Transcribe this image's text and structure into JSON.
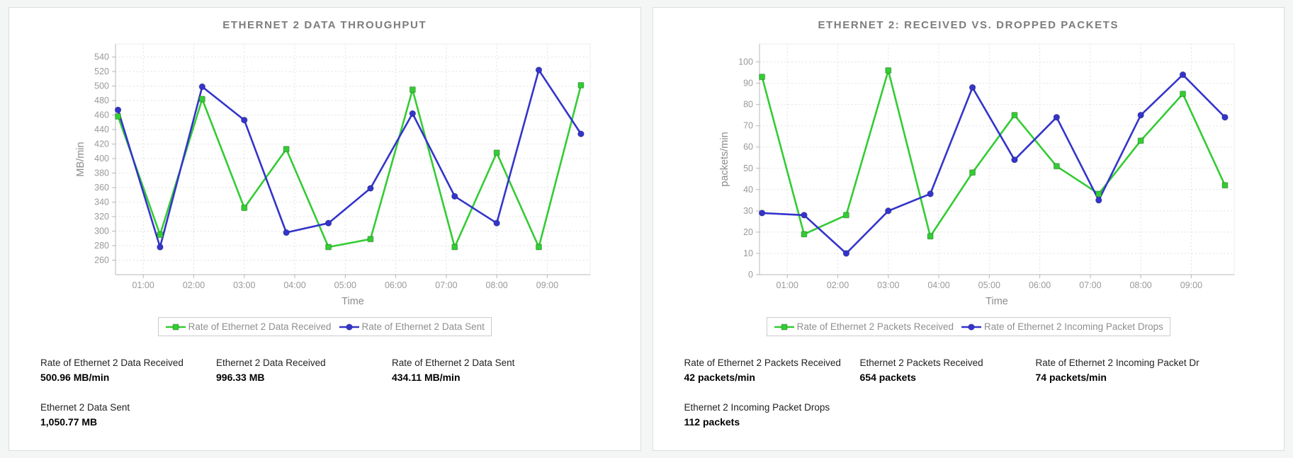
{
  "colors": {
    "received_green": "#33cc33",
    "drops_blue": "#3434cc",
    "title_gray": "#7d7d7d",
    "axis_text": "#999999",
    "legend_text": "#8f8f8f",
    "grid_line": "#e2e2e2",
    "axis_line": "#b8b8b8"
  },
  "panels": [
    {
      "title": "ETHERNET 2 DATA THROUGHPUT",
      "legend": [
        {
          "label": "Rate of Ethernet 2 Data Received",
          "color": "#33cc33",
          "marker": "square"
        },
        {
          "label": "Rate of Ethernet 2 Data Sent",
          "color": "#3434cc",
          "marker": "circle"
        }
      ],
      "stats": [
        {
          "label": "Rate of Ethernet 2 Data Received",
          "value": "500.96 MB/min"
        },
        {
          "label": "Ethernet 2 Data Received",
          "value": "996.33 MB"
        },
        {
          "label": "Rate of Ethernet 2 Data Sent",
          "value": "434.11 MB/min"
        },
        {
          "label": "Ethernet 2 Data Sent",
          "value": "1,050.77 MB"
        }
      ]
    },
    {
      "title": "ETHERNET 2: RECEIVED VS. DROPPED PACKETS",
      "legend": [
        {
          "label": "Rate of Ethernet 2 Packets Received",
          "color": "#33cc33",
          "marker": "square"
        },
        {
          "label": "Rate of Ethernet 2 Incoming Packet Drops",
          "color": "#3434cc",
          "marker": "circle"
        }
      ],
      "stats": [
        {
          "label": "Rate of Ethernet 2 Packets Received",
          "value": "42 packets/min"
        },
        {
          "label": "Ethernet 2 Packets Received",
          "value": "654 packets"
        },
        {
          "label": "Rate of Ethernet 2 Incoming Packet Dr",
          "value": "74 packets/min"
        },
        {
          "label": "Ethernet 2 Incoming Packet Drops",
          "value": "112 packets"
        }
      ]
    }
  ],
  "chart_data": [
    {
      "type": "line",
      "title": "ETHERNET 2 DATA THROUGHPUT",
      "xlabel": "Time",
      "ylabel": "MB/min",
      "x_times": [
        "00:30",
        "01:20",
        "02:10",
        "03:00",
        "03:50",
        "04:40",
        "05:30",
        "06:20",
        "07:10",
        "08:00",
        "08:50",
        "09:40"
      ],
      "x_hours": [
        0.5,
        1.333,
        2.167,
        3,
        3.833,
        4.667,
        5.5,
        6.333,
        7.167,
        8,
        8.833,
        9.667
      ],
      "xtick_labels": [
        "01:00",
        "02:00",
        "03:00",
        "04:00",
        "05:00",
        "06:00",
        "07:00",
        "08:00",
        "09:00"
      ],
      "xtick_hours": [
        1,
        2,
        3,
        4,
        5,
        6,
        7,
        8,
        9
      ],
      "xlim": [
        0.45,
        9.85
      ],
      "ylim": [
        240,
        558
      ],
      "yticks": [
        260,
        280,
        300,
        320,
        340,
        360,
        380,
        400,
        420,
        440,
        460,
        480,
        500,
        520,
        540
      ],
      "grid": true,
      "legend_position": "bottom",
      "series": [
        {
          "name": "Rate of Ethernet 2 Data Received",
          "color": "#33cc33",
          "marker": "square",
          "values": [
            458,
            295,
            482,
            332,
            413,
            278,
            289,
            495,
            278,
            408,
            278,
            501
          ]
        },
        {
          "name": "Rate of Ethernet 2 Data Sent",
          "color": "#3434cc",
          "marker": "circle",
          "values": [
            467,
            278,
            499,
            453,
            298,
            311,
            359,
            462,
            348,
            311,
            522,
            434
          ]
        }
      ]
    },
    {
      "type": "line",
      "title": "ETHERNET 2: RECEIVED VS. DROPPED PACKETS",
      "xlabel": "Time",
      "ylabel": "packets/min",
      "x_times": [
        "00:30",
        "01:20",
        "02:10",
        "03:00",
        "03:50",
        "04:40",
        "05:30",
        "06:20",
        "07:10",
        "08:00",
        "08:50",
        "09:40"
      ],
      "x_hours": [
        0.5,
        1.333,
        2.167,
        3,
        3.833,
        4.667,
        5.5,
        6.333,
        7.167,
        8,
        8.833,
        9.667
      ],
      "xtick_labels": [
        "01:00",
        "02:00",
        "03:00",
        "04:00",
        "05:00",
        "06:00",
        "07:00",
        "08:00",
        "09:00"
      ],
      "xtick_hours": [
        1,
        2,
        3,
        4,
        5,
        6,
        7,
        8,
        9
      ],
      "xlim": [
        0.45,
        9.85
      ],
      "ylim": [
        0,
        108.5
      ],
      "yticks": [
        0,
        10,
        20,
        30,
        40,
        50,
        60,
        70,
        80,
        90,
        100
      ],
      "grid": true,
      "legend_position": "bottom",
      "series": [
        {
          "name": "Rate of Ethernet 2 Packets Received",
          "color": "#33cc33",
          "marker": "square",
          "values": [
            93,
            19,
            28,
            96,
            18,
            48,
            75,
            51,
            38,
            63,
            85,
            42
          ]
        },
        {
          "name": "Rate of Ethernet 2 Incoming Packet Drops",
          "color": "#3434cc",
          "marker": "circle",
          "values": [
            29,
            28,
            10,
            30,
            38,
            88,
            54,
            74,
            35,
            75,
            94,
            74
          ]
        }
      ]
    }
  ]
}
